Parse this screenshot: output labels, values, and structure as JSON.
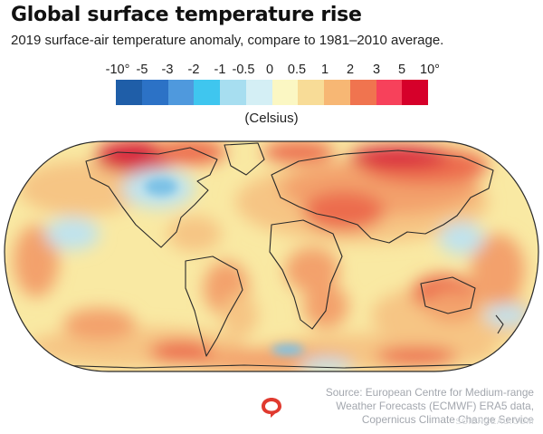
{
  "header": {
    "title": "Global surface temperature rise",
    "subtitle": "2019 surface-air temperature anomaly, compare to 1981–2010 average."
  },
  "legend": {
    "tick_labels": [
      "-10°",
      "-5",
      "-3",
      "-2",
      "-1",
      "-0.5",
      "0",
      "0.5",
      "1",
      "2",
      "3",
      "5",
      "10°"
    ],
    "swatch_colors": [
      "#1f5ea8",
      "#2c72c6",
      "#4f99dd",
      "#3fc6ef",
      "#a7def0",
      "#d4eff5",
      "#fbf7c3",
      "#f8dc97",
      "#f7b774",
      "#f0744f",
      "#f7415b",
      "#d6002a"
    ],
    "unit": "(Celsius)"
  },
  "map": {
    "projection": "Robinson",
    "palette": {
      "ocean_base": "#f9e9a3",
      "warm": "#f6c584",
      "warmer": "#f3a16c",
      "hot": "#ec6c4e",
      "hottest": "#d8283c",
      "cool": "#bfe3ee",
      "cold": "#7cc1e6",
      "coast": "#2a2a2a"
    }
  },
  "source": {
    "lines": [
      "Source: European Centre for Medium-range",
      "Weather Forecasts (ECMWF) ERA5 data,",
      "Copernicus Climate Change Service"
    ],
    "credit": "SCIENCEAU.COM"
  },
  "logo": {
    "icon": "speech-bubble-icon",
    "color": "#e03a2f"
  }
}
